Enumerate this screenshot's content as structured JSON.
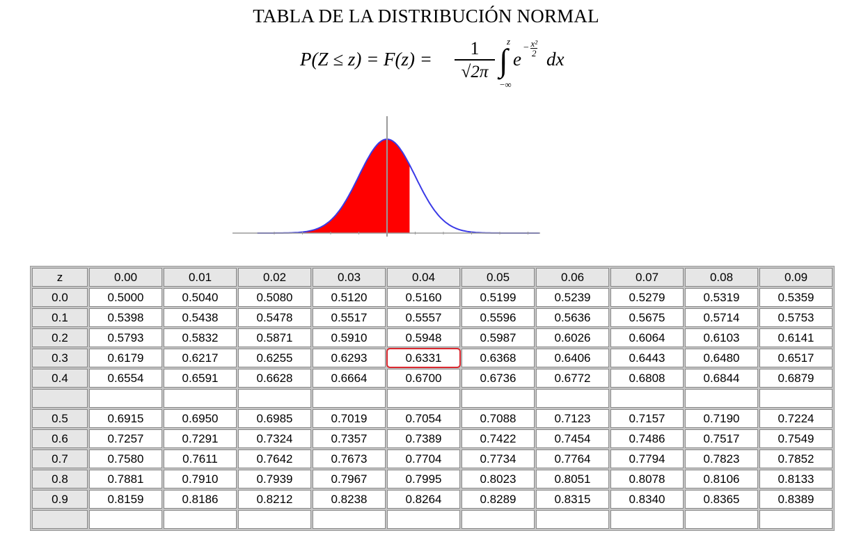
{
  "title": "TABLA DE LA DISTRIBUCIÓN NORMAL",
  "formula": {
    "lhs": "P(Z ≤ z) = F(z) =",
    "numerator": "1",
    "denominator": "√2π",
    "upper_limit": "z",
    "lower_limit": "−∞",
    "base": "e",
    "exponent_sign": "−",
    "exponent_num": "x²",
    "exponent_den": "2",
    "differential": "dx"
  },
  "curve": {
    "shaded_up_to_z": 0.8,
    "fill_color": "#ff0000",
    "line_color": "#3a3ae6"
  },
  "highlight_color": "#d9272e",
  "table": {
    "header": [
      "z",
      "0.00",
      "0.01",
      "0.02",
      "0.03",
      "0.04",
      "0.05",
      "0.06",
      "0.07",
      "0.08",
      "0.09"
    ],
    "rows": [
      {
        "z": "0.0",
        "v": [
          "0.5000",
          "0.5040",
          "0.5080",
          "0.5120",
          "0.5160",
          "0.5199",
          "0.5239",
          "0.5279",
          "0.5319",
          "0.5359"
        ]
      },
      {
        "z": "0.1",
        "v": [
          "0.5398",
          "0.5438",
          "0.5478",
          "0.5517",
          "0.5557",
          "0.5596",
          "0.5636",
          "0.5675",
          "0.5714",
          "0.5753"
        ]
      },
      {
        "z": "0.2",
        "v": [
          "0.5793",
          "0.5832",
          "0.5871",
          "0.5910",
          "0.5948",
          "0.5987",
          "0.6026",
          "0.6064",
          "0.6103",
          "0.6141"
        ]
      },
      {
        "z": "0.3",
        "v": [
          "0.6179",
          "0.6217",
          "0.6255",
          "0.6293",
          "0.6331",
          "0.6368",
          "0.6406",
          "0.6443",
          "0.6480",
          "0.6517"
        ]
      },
      {
        "z": "0.4",
        "v": [
          "0.6554",
          "0.6591",
          "0.6628",
          "0.6664",
          "0.6700",
          "0.6736",
          "0.6772",
          "0.6808",
          "0.6844",
          "0.6879"
        ]
      },
      {
        "z": "",
        "v": [
          "",
          "",
          "",
          "",
          "",
          "",
          "",
          "",
          "",
          ""
        ]
      },
      {
        "z": "0.5",
        "v": [
          "0.6915",
          "0.6950",
          "0.6985",
          "0.7019",
          "0.7054",
          "0.7088",
          "0.7123",
          "0.7157",
          "0.7190",
          "0.7224"
        ]
      },
      {
        "z": "0.6",
        "v": [
          "0.7257",
          "0.7291",
          "0.7324",
          "0.7357",
          "0.7389",
          "0.7422",
          "0.7454",
          "0.7486",
          "0.7517",
          "0.7549"
        ]
      },
      {
        "z": "0.7",
        "v": [
          "0.7580",
          "0.7611",
          "0.7642",
          "0.7673",
          "0.7704",
          "0.7734",
          "0.7764",
          "0.7794",
          "0.7823",
          "0.7852"
        ]
      },
      {
        "z": "0.8",
        "v": [
          "0.7881",
          "0.7910",
          "0.7939",
          "0.7967",
          "0.7995",
          "0.8023",
          "0.8051",
          "0.8078",
          "0.8106",
          "0.8133"
        ]
      },
      {
        "z": "0.9",
        "v": [
          "0.8159",
          "0.8186",
          "0.8212",
          "0.8238",
          "0.8264",
          "0.8289",
          "0.8315",
          "0.8340",
          "0.8365",
          "0.8389"
        ]
      },
      {
        "z": "",
        "v": [
          "",
          "",
          "",
          "",
          "",
          "",
          "",
          "",
          "",
          ""
        ]
      }
    ],
    "highlighted_cell": {
      "row": 3,
      "col": 4
    }
  }
}
